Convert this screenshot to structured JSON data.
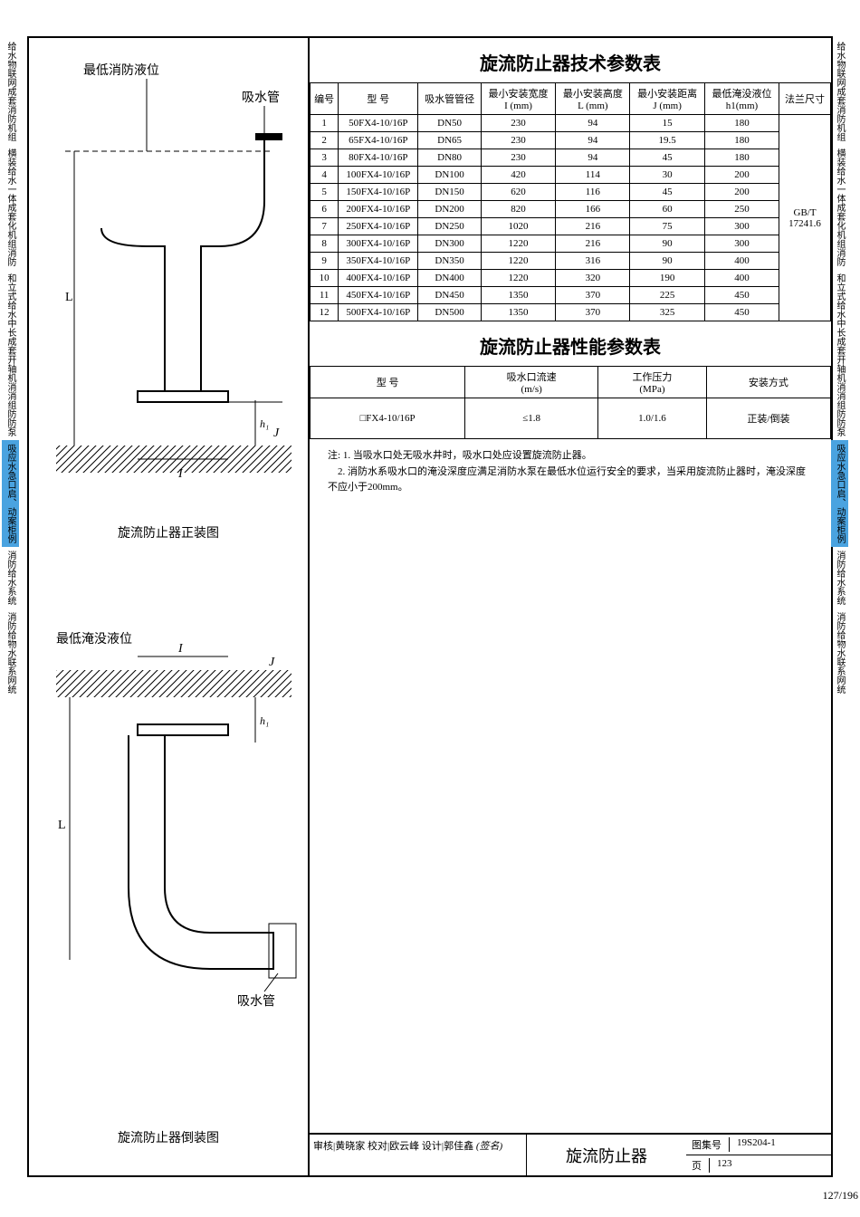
{
  "side_tabs": [
    "给水物联网成套消防机组",
    "横装给水一体成套化机组消防",
    "和立式给水中长成套开轴机消消组防防泵",
    "吸应水急口启、动案柜例",
    "消防给水系统",
    "消防给物水联系网统"
  ],
  "side_tabs_right": [
    "给水物联网成套消防机组",
    "横装给水一体成套化机组消防",
    "和立式给水中长成套开轴机消消组防防泵",
    "吸应水急口启、动案柜例",
    "消防给水系统",
    "消防给物水联系网统"
  ],
  "diag1": {
    "label_top": "最低消防液位",
    "label_pipe": "吸水管",
    "dim_L": "L",
    "dim_I": "I",
    "dim_J": "J",
    "dim_h1": "h₁",
    "caption": "旋流防止器正装图"
  },
  "diag2": {
    "label_top": "最低淹没液位",
    "label_pipe": "吸水管",
    "dim_L": "L",
    "dim_I": "I",
    "dim_J": "J",
    "dim_h1": "h₁",
    "caption": "旋流防止器倒装图"
  },
  "table1": {
    "title": "旋流防止器技术参数表",
    "columns": [
      "编号",
      "型 号",
      "吸水管管径",
      "最小安装宽度\nI (mm)",
      "最小安装高度\nL (mm)",
      "最小安装距离\nJ (mm)",
      "最低淹没液位\nh1(mm)",
      "法兰尺寸"
    ],
    "rows": [
      [
        "1",
        "50FX4-10/16P",
        "DN50",
        "230",
        "94",
        "15",
        "180"
      ],
      [
        "2",
        "65FX4-10/16P",
        "DN65",
        "230",
        "94",
        "19.5",
        "180"
      ],
      [
        "3",
        "80FX4-10/16P",
        "DN80",
        "230",
        "94",
        "45",
        "180"
      ],
      [
        "4",
        "100FX4-10/16P",
        "DN100",
        "420",
        "114",
        "30",
        "200"
      ],
      [
        "5",
        "150FX4-10/16P",
        "DN150",
        "620",
        "116",
        "45",
        "200"
      ],
      [
        "6",
        "200FX4-10/16P",
        "DN200",
        "820",
        "166",
        "60",
        "250"
      ],
      [
        "7",
        "250FX4-10/16P",
        "DN250",
        "1020",
        "216",
        "75",
        "300"
      ],
      [
        "8",
        "300FX4-10/16P",
        "DN300",
        "1220",
        "216",
        "90",
        "300"
      ],
      [
        "9",
        "350FX4-10/16P",
        "DN350",
        "1220",
        "316",
        "90",
        "400"
      ],
      [
        "10",
        "400FX4-10/16P",
        "DN400",
        "1220",
        "320",
        "190",
        "400"
      ],
      [
        "11",
        "450FX4-10/16P",
        "DN450",
        "1350",
        "370",
        "225",
        "450"
      ],
      [
        "12",
        "500FX4-10/16P",
        "DN500",
        "1350",
        "370",
        "325",
        "450"
      ]
    ],
    "flange": "GB/T\n17241.6"
  },
  "table2": {
    "title": "旋流防止器性能参数表",
    "columns": [
      "型 号",
      "吸水口流速\n(m/s)",
      "工作压力\n(MPa)",
      "安装方式"
    ],
    "rows": [
      [
        "□FX4-10/16P",
        "≤1.8",
        "1.0/1.6",
        "正装/倒装"
      ]
    ]
  },
  "notes": {
    "prefix": "注:",
    "items": [
      "1. 当吸水口处无吸水井时，吸水口处应设置旋流防止器。",
      "2. 消防水系吸水口的淹没深度应满足消防水泵在最低水位运行安全的要求，当采用旋流防止器时，淹没深度不应小于200mm。"
    ]
  },
  "titleblock": {
    "signatures": "审核|黄晓家  校对|欧云峰  设计|郭佳鑫",
    "handwritten": "(签名)",
    "drawing_name": "旋流防止器",
    "set_code_label": "图集号",
    "set_code": "19S204-1",
    "page_label": "页",
    "page": "123"
  },
  "pagination": "127/196"
}
